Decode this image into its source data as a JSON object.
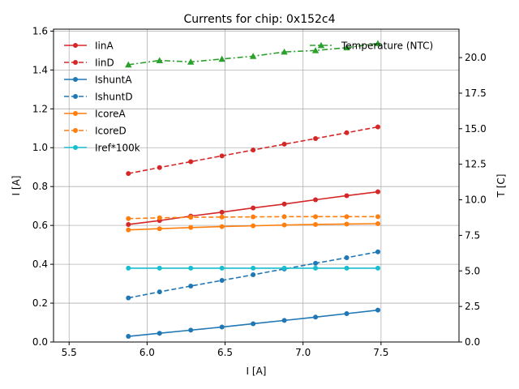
{
  "chart_data": {
    "type": "line",
    "title": "Currents for chip: 0x152c4",
    "xlabel": "I [A]",
    "ylabel": "I [A]",
    "y2label": "T [C]",
    "xlim": [
      5.4,
      8.0
    ],
    "ylim": [
      0,
      1.61
    ],
    "y2lim": [
      0,
      22.0
    ],
    "xticks": [
      5.5,
      6.0,
      6.5,
      7.0,
      7.5
    ],
    "xtick_labels": [
      "5.5",
      "6.0",
      "6.5",
      "7.0",
      "7.5"
    ],
    "yticks": [
      0,
      0.2,
      0.4,
      0.6,
      0.8,
      1.0,
      1.2,
      1.4,
      1.6
    ],
    "ytick_labels": [
      "0.0",
      "0.2",
      "0.4",
      "0.6",
      "0.8",
      "1.0",
      "1.2",
      "1.4",
      "1.6"
    ],
    "y2ticks": [
      0,
      2.5,
      5.0,
      7.5,
      10.0,
      12.5,
      15.0,
      17.5,
      20.0
    ],
    "y2tick_labels": [
      "0.0",
      "2.5",
      "5.0",
      "7.5",
      "10.0",
      "12.5",
      "15.0",
      "17.5",
      "20.0"
    ],
    "grid": true,
    "legend_position": "top-left",
    "legend2_position": "top-right",
    "x": [
      5.88,
      6.08,
      6.28,
      6.48,
      6.68,
      6.88,
      7.08,
      7.28,
      7.48
    ],
    "series": [
      {
        "name": "IinA",
        "color": "#d62728",
        "dash": "solid",
        "marker": "circle",
        "axis": "left",
        "values": [
          0.605,
          0.625,
          0.648,
          0.668,
          0.69,
          0.71,
          0.732,
          0.753,
          0.773
        ]
      },
      {
        "name": "IinD",
        "color": "#d62728",
        "dash": "dashed",
        "marker": "circle",
        "axis": "left",
        "values": [
          0.867,
          0.898,
          0.928,
          0.958,
          0.988,
          1.018,
          1.047,
          1.077,
          1.107
        ]
      },
      {
        "name": "IshuntA",
        "color": "#1f77b4",
        "dash": "solid",
        "marker": "circle",
        "axis": "left",
        "values": [
          0.029,
          0.045,
          0.061,
          0.077,
          0.094,
          0.111,
          0.128,
          0.146,
          0.164
        ]
      },
      {
        "name": "IshuntD",
        "color": "#1f77b4",
        "dash": "dashed",
        "marker": "circle",
        "axis": "left",
        "values": [
          0.227,
          0.258,
          0.288,
          0.317,
          0.346,
          0.376,
          0.405,
          0.434,
          0.464
        ]
      },
      {
        "name": "IcoreA",
        "color": "#ff7f0e",
        "dash": "solid",
        "marker": "circle",
        "axis": "left",
        "values": [
          0.577,
          0.583,
          0.589,
          0.594,
          0.598,
          0.602,
          0.605,
          0.607,
          0.609
        ]
      },
      {
        "name": "IcoreD",
        "color": "#ff7f0e",
        "dash": "dashed",
        "marker": "circle",
        "axis": "left",
        "values": [
          0.635,
          0.639,
          0.642,
          0.643,
          0.644,
          0.645,
          0.645,
          0.645,
          0.645
        ]
      },
      {
        "name": "Iref*100k",
        "color": "#17becf",
        "dash": "solid",
        "marker": "circle",
        "axis": "left",
        "values": [
          0.38,
          0.38,
          0.38,
          0.38,
          0.38,
          0.38,
          0.38,
          0.38,
          0.38
        ]
      },
      {
        "name": "Temperature (NTC)",
        "color": "#2ca02c",
        "dash": "dashdot",
        "marker": "triangle",
        "axis": "right",
        "values": [
          19.5,
          19.8,
          19.7,
          19.9,
          20.1,
          20.4,
          20.5,
          20.7,
          21.0
        ]
      }
    ]
  }
}
